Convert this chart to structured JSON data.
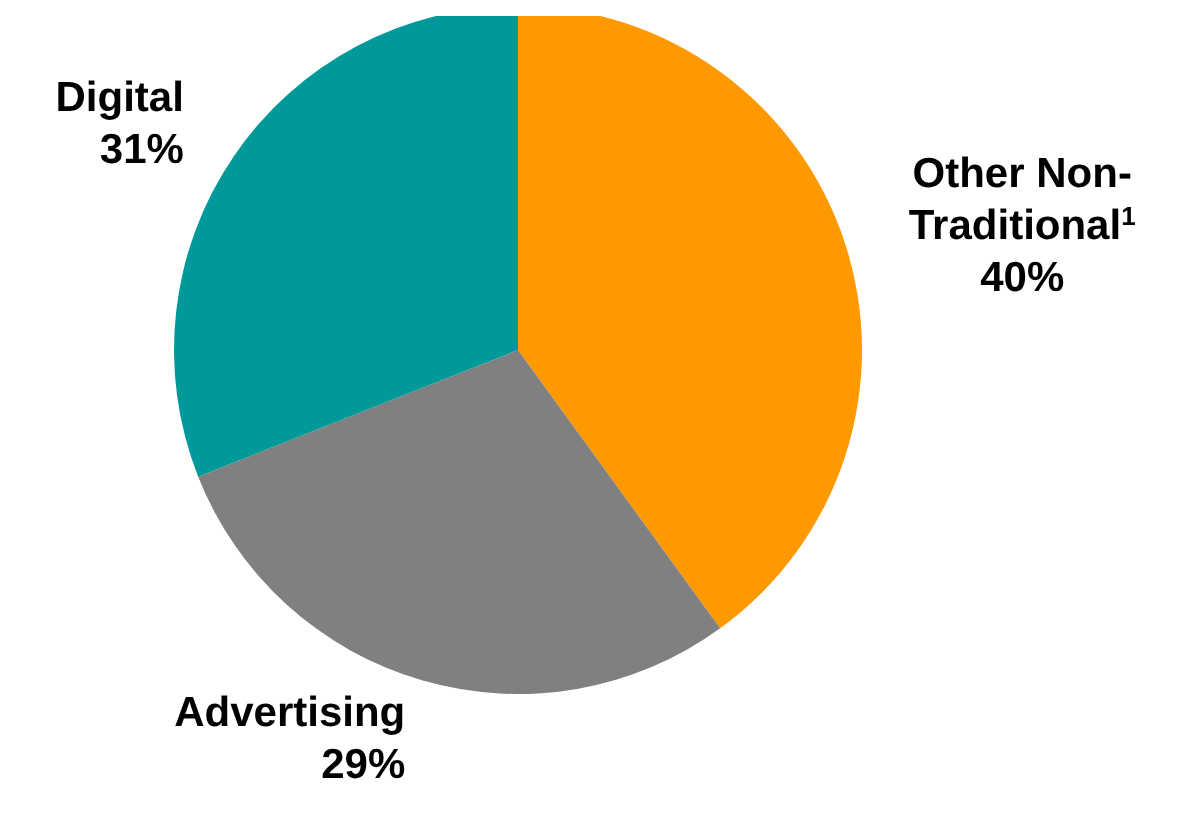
{
  "chart_data": {
    "type": "pie",
    "categories": [
      "Other Non-Traditional$^{1}$",
      "Advertising",
      "Digital"
    ],
    "values": [
      40,
      29,
      31
    ],
    "colors": [
      "#ff9900",
      "#808080",
      "#009999"
    ],
    "value_labels": [
      "40%",
      "29%",
      "31%"
    ]
  }
}
